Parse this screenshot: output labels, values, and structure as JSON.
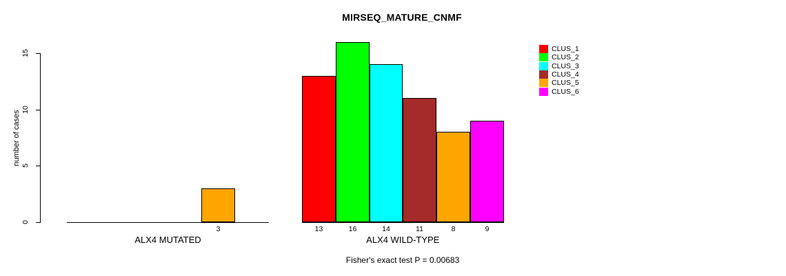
{
  "chart": {
    "title": "MIRSEQ_MATURE_CNMF",
    "ylabel": "number of cases",
    "footnote": "Fisher's exact test P = 0.00683"
  },
  "chart_data": {
    "type": "bar",
    "title": "MIRSEQ_MATURE_CNMF",
    "xlabel": "",
    "ylabel": "number of cases",
    "ylim": [
      0,
      15
    ],
    "yticks": [
      0,
      5,
      10,
      15
    ],
    "grid": false,
    "legend_position": "top-right",
    "bar_borders": "#000000",
    "annotation": "Fisher's exact test P = 0.00683",
    "series": [
      {
        "name": "CLUS_1",
        "color": "#FF0000"
      },
      {
        "name": "CLUS_2",
        "color": "#00FF00"
      },
      {
        "name": "CLUS_3",
        "color": "#00FFFF"
      },
      {
        "name": "CLUS_4",
        "color": "#A52A2A"
      },
      {
        "name": "CLUS_5",
        "color": "#FFA500"
      },
      {
        "name": "CLUS_6",
        "color": "#FF00FF"
      }
    ],
    "groups": [
      {
        "label": "ALX4 MUTATED",
        "values": [
          0,
          0,
          0,
          0,
          3,
          0
        ]
      },
      {
        "label": "ALX4 WILD-TYPE",
        "values": [
          13,
          16,
          14,
          11,
          8,
          9
        ]
      }
    ],
    "shown_bar_labels": [
      "3",
      "13",
      "16",
      "14",
      "11",
      "8",
      "9"
    ]
  }
}
